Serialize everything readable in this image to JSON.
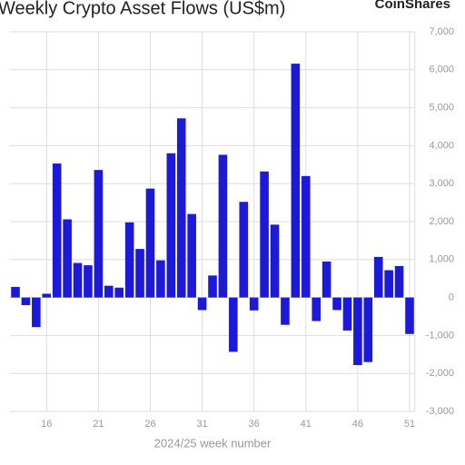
{
  "chart_data": {
    "type": "bar",
    "title": "Weekly Crypto Asset Flows (US$m)",
    "logo": "CoinShares",
    "x_label": "2024/25 week number",
    "categories": [
      null,
      null,
      null,
      "16",
      null,
      null,
      null,
      null,
      "21",
      null,
      null,
      null,
      null,
      "26",
      null,
      null,
      null,
      null,
      "31",
      null,
      null,
      null,
      null,
      "36",
      null,
      null,
      null,
      null,
      "41",
      null,
      null,
      null,
      null,
      "46",
      null,
      null,
      null,
      null,
      "51"
    ],
    "values": [
      280,
      -200,
      -780,
      100,
      3530,
      2060,
      910,
      850,
      3360,
      310,
      260,
      1980,
      1280,
      2870,
      980,
      3800,
      4720,
      2200,
      -330,
      580,
      3760,
      -1430,
      2520,
      -340,
      3320,
      1920,
      -720,
      6160,
      3200,
      -620,
      950,
      -330,
      -870,
      -1780,
      -1700,
      1070,
      720,
      830,
      -960
    ],
    "color": "#1c1ad8",
    "ylim": [
      -3000,
      7000
    ],
    "yticks": [
      {
        "value": -3000,
        "label": "-3,000"
      },
      {
        "value": -2000,
        "label": "-2,000"
      },
      {
        "value": -1000,
        "label": "-1,000"
      },
      0,
      {
        "value": 1000,
        "label": "1,000"
      },
      {
        "value": 2000,
        "label": "2,000"
      },
      {
        "value": 3000,
        "label": "3,000"
      },
      {
        "value": 4000,
        "label": "4,000"
      },
      {
        "value": 5000,
        "label": "5,000"
      },
      {
        "value": 6000,
        "label": "6,000"
      },
      {
        "value": 7000,
        "label": "7,000"
      }
    ],
    "grid": true,
    "y_axis_side": "right"
  }
}
